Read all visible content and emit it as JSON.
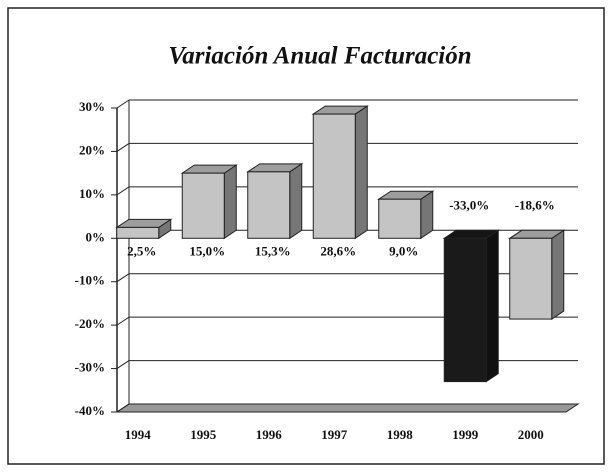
{
  "chart_data": {
    "type": "bar3d",
    "title": "Variación Anual Facturación",
    "categories": [
      "1994",
      "1995",
      "1996",
      "1997",
      "1998",
      "1999",
      "2000"
    ],
    "values": [
      2.5,
      15.0,
      15.3,
      28.6,
      9.0,
      -33.0,
      -18.6
    ],
    "value_labels": [
      "2,5%",
      "15,0%",
      "15,3%",
      "28,6%",
      "9,0%",
      "-33,0%",
      "-18,6%"
    ],
    "colors": [
      "#c4c4c4",
      "#c4c4c4",
      "#c4c4c4",
      "#c4c4c4",
      "#c4c4c4",
      "#1a1a1a",
      "#c4c4c4"
    ],
    "ylim": [
      -40,
      30
    ],
    "yticks": [
      {
        "value": 30,
        "label": "30%"
      },
      {
        "value": 20,
        "label": "20%"
      },
      {
        "value": 10,
        "label": "10%"
      },
      {
        "value": 0,
        "label": "0%"
      },
      {
        "value": -10,
        "label": "-10%"
      },
      {
        "value": -20,
        "label": "-20%"
      },
      {
        "value": -30,
        "label": "-30%"
      },
      {
        "value": -40,
        "label": "-40%"
      }
    ],
    "grid": true
  }
}
